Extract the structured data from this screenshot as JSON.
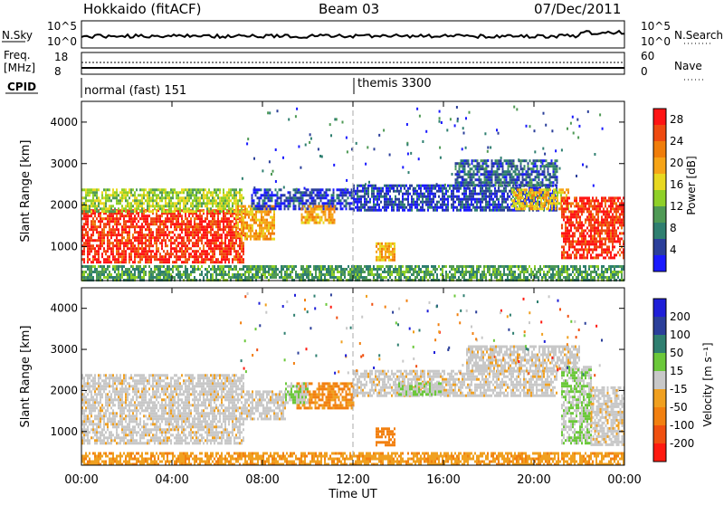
{
  "header": {
    "site": "Hokkaido (fitACF)",
    "beam": "Beam 03",
    "date": "07/Dec/2011"
  },
  "strip": {
    "nsky_label": "N.Sky",
    "nsky_ticks": [
      "10^5",
      "10^0"
    ],
    "nsearch_label": "N.Search",
    "nsearch_ticks": [
      "10^5",
      "10^0"
    ],
    "freq_label": "Freq.",
    "freq_unit": "[MHz]",
    "freq_ticks": [
      "18",
      "8"
    ],
    "nave_label": "Nave",
    "nave_ticks": [
      "60",
      "0"
    ],
    "cpid_label": "CPID",
    "cpid_entries": [
      {
        "text": "normal (fast) 151",
        "start_hour": 0
      },
      {
        "text": "themis 3300",
        "start_hour": 12
      }
    ]
  },
  "colors": {
    "power_scale": [
      "#1a1aff",
      "#2b3f9a",
      "#2f7f70",
      "#4f9a55",
      "#8fd028",
      "#e8d820",
      "#f6a417",
      "#f07d0a",
      "#ef4a10",
      "#ff1414"
    ],
    "velocity_scale": [
      "#1f1fd8",
      "#2b3f9a",
      "#2f7f70",
      "#6bc83a",
      "#c8c8c8",
      "#f0a020",
      "#f28010",
      "#f05010",
      "#ff1a10"
    ]
  },
  "chart_data": [
    {
      "type": "heatmap",
      "name": "power",
      "xlabel": "",
      "ylabel": "Slant Range [km]",
      "x_ticks": [
        "00:00",
        "04:00",
        "08:00",
        "12:00",
        "16:00",
        "20:00",
        "00:00"
      ],
      "xlim_hours": [
        0,
        24
      ],
      "ylim_km": [
        180,
        4500
      ],
      "y_ticks": [
        1000,
        2000,
        3000,
        4000
      ],
      "colorbar_label": "Power [dB]",
      "colorbar_ticks": [
        4,
        8,
        12,
        16,
        20,
        24,
        28
      ],
      "colorbar_range": [
        0,
        30
      ],
      "regions": [
        {
          "t0": 0.0,
          "t1": 7.2,
          "r0": 650,
          "r1": 1900,
          "level": 27
        },
        {
          "t0": 0.0,
          "t1": 7.2,
          "r0": 1850,
          "r1": 2400,
          "level": 14
        },
        {
          "t0": 6.8,
          "t1": 8.5,
          "r0": 1200,
          "r1": 2000,
          "level": 20
        },
        {
          "t0": 7.5,
          "t1": 12.0,
          "r0": 1900,
          "r1": 2400,
          "level": 4
        },
        {
          "t0": 9.7,
          "t1": 11.2,
          "r0": 1600,
          "r1": 2000,
          "level": 20
        },
        {
          "t0": 12.0,
          "t1": 21.0,
          "r0": 1900,
          "r1": 2500,
          "level": 4
        },
        {
          "t0": 16.5,
          "t1": 21.0,
          "r0": 2500,
          "r1": 3100,
          "level": 6
        },
        {
          "t0": 19.0,
          "t1": 21.5,
          "r0": 1900,
          "r1": 2400,
          "level": 18
        },
        {
          "t0": 21.2,
          "t1": 24.0,
          "r0": 700,
          "r1": 2200,
          "level": 27
        },
        {
          "t0": 13.0,
          "t1": 13.8,
          "r0": 700,
          "r1": 1100,
          "level": 20
        },
        {
          "t0": 0.0,
          "t1": 24.0,
          "r0": 180,
          "r1": 550,
          "level": 10
        }
      ]
    },
    {
      "type": "heatmap",
      "name": "velocity",
      "xlabel": "Time UT",
      "ylabel": "Slant Range [km]",
      "x_ticks": [
        "00:00",
        "04:00",
        "08:00",
        "12:00",
        "16:00",
        "20:00",
        "00:00"
      ],
      "xlim_hours": [
        0,
        24
      ],
      "ylim_km": [
        180,
        4500
      ],
      "y_ticks": [
        1000,
        2000,
        3000,
        4000
      ],
      "colorbar_label": "Velocity [m s⁻¹]",
      "colorbar_ticks": [
        200,
        100,
        50,
        15,
        -15,
        -50,
        -100,
        -200
      ],
      "regions": [
        {
          "t0": 0.0,
          "t1": 7.2,
          "r0": 700,
          "r1": 2400,
          "level": 0
        },
        {
          "t0": 7.2,
          "t1": 9.0,
          "r0": 1300,
          "r1": 2000,
          "level": 0
        },
        {
          "t0": 9.5,
          "t1": 12.0,
          "r0": 1600,
          "r1": 2200,
          "level": -60
        },
        {
          "t0": 9.0,
          "t1": 10.0,
          "r0": 1700,
          "r1": 2200,
          "level": 30
        },
        {
          "t0": 12.0,
          "t1": 21.0,
          "r0": 1900,
          "r1": 2500,
          "level": 0
        },
        {
          "t0": 14.0,
          "t1": 16.0,
          "r0": 1900,
          "r1": 2200,
          "level": 30
        },
        {
          "t0": 17.0,
          "t1": 22.0,
          "r0": 2500,
          "r1": 3100,
          "level": 0
        },
        {
          "t0": 21.2,
          "t1": 22.5,
          "r0": 700,
          "r1": 2600,
          "level": 30
        },
        {
          "t0": 22.5,
          "t1": 24.0,
          "r0": 700,
          "r1": 2100,
          "level": 0
        },
        {
          "t0": 13.0,
          "t1": 13.8,
          "r0": 700,
          "r1": 1100,
          "level": -80
        },
        {
          "t0": 0.0,
          "t1": 24.0,
          "r0": 180,
          "r1": 500,
          "level": -40
        }
      ]
    }
  ]
}
